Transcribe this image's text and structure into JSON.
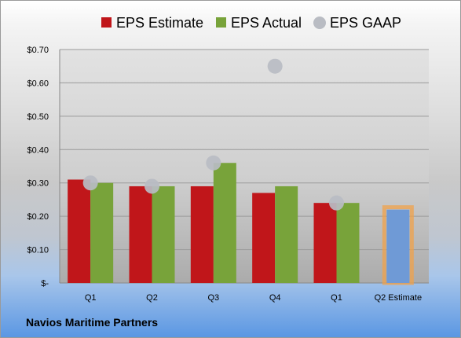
{
  "company": "Navios Maritime Partners",
  "chart_data": {
    "type": "bar",
    "categories": [
      "Q1",
      "Q2",
      "Q3",
      "Q4",
      "Q1",
      "Q2 Estimate"
    ],
    "series": [
      {
        "name": "EPS Estimate",
        "kind": "bar",
        "color": "#c0161a",
        "values": [
          0.31,
          0.29,
          0.29,
          0.27,
          0.24,
          null
        ]
      },
      {
        "name": "EPS Actual",
        "kind": "bar",
        "color": "#78a33a",
        "values": [
          0.3,
          0.29,
          0.36,
          0.29,
          0.24,
          null
        ]
      },
      {
        "name": "EPS GAAP",
        "kind": "marker",
        "color": "#b9bcc3",
        "values": [
          0.3,
          0.29,
          0.36,
          0.65,
          0.24,
          null
        ]
      }
    ],
    "forecast": {
      "category": "Q2 Estimate",
      "value": 0.22,
      "color": "#6f9ad6",
      "outline": "#f0a24a"
    },
    "ylim": [
      0,
      0.7
    ],
    "yticks": [
      0,
      0.1,
      0.2,
      0.3,
      0.4,
      0.5,
      0.6,
      0.7
    ],
    "ytick_labels": [
      "$-",
      "$0.10",
      "$0.20",
      "$0.30",
      "$0.40",
      "$0.50",
      "$0.60",
      "$0.70"
    ],
    "grid": true,
    "legend_position": "top"
  }
}
